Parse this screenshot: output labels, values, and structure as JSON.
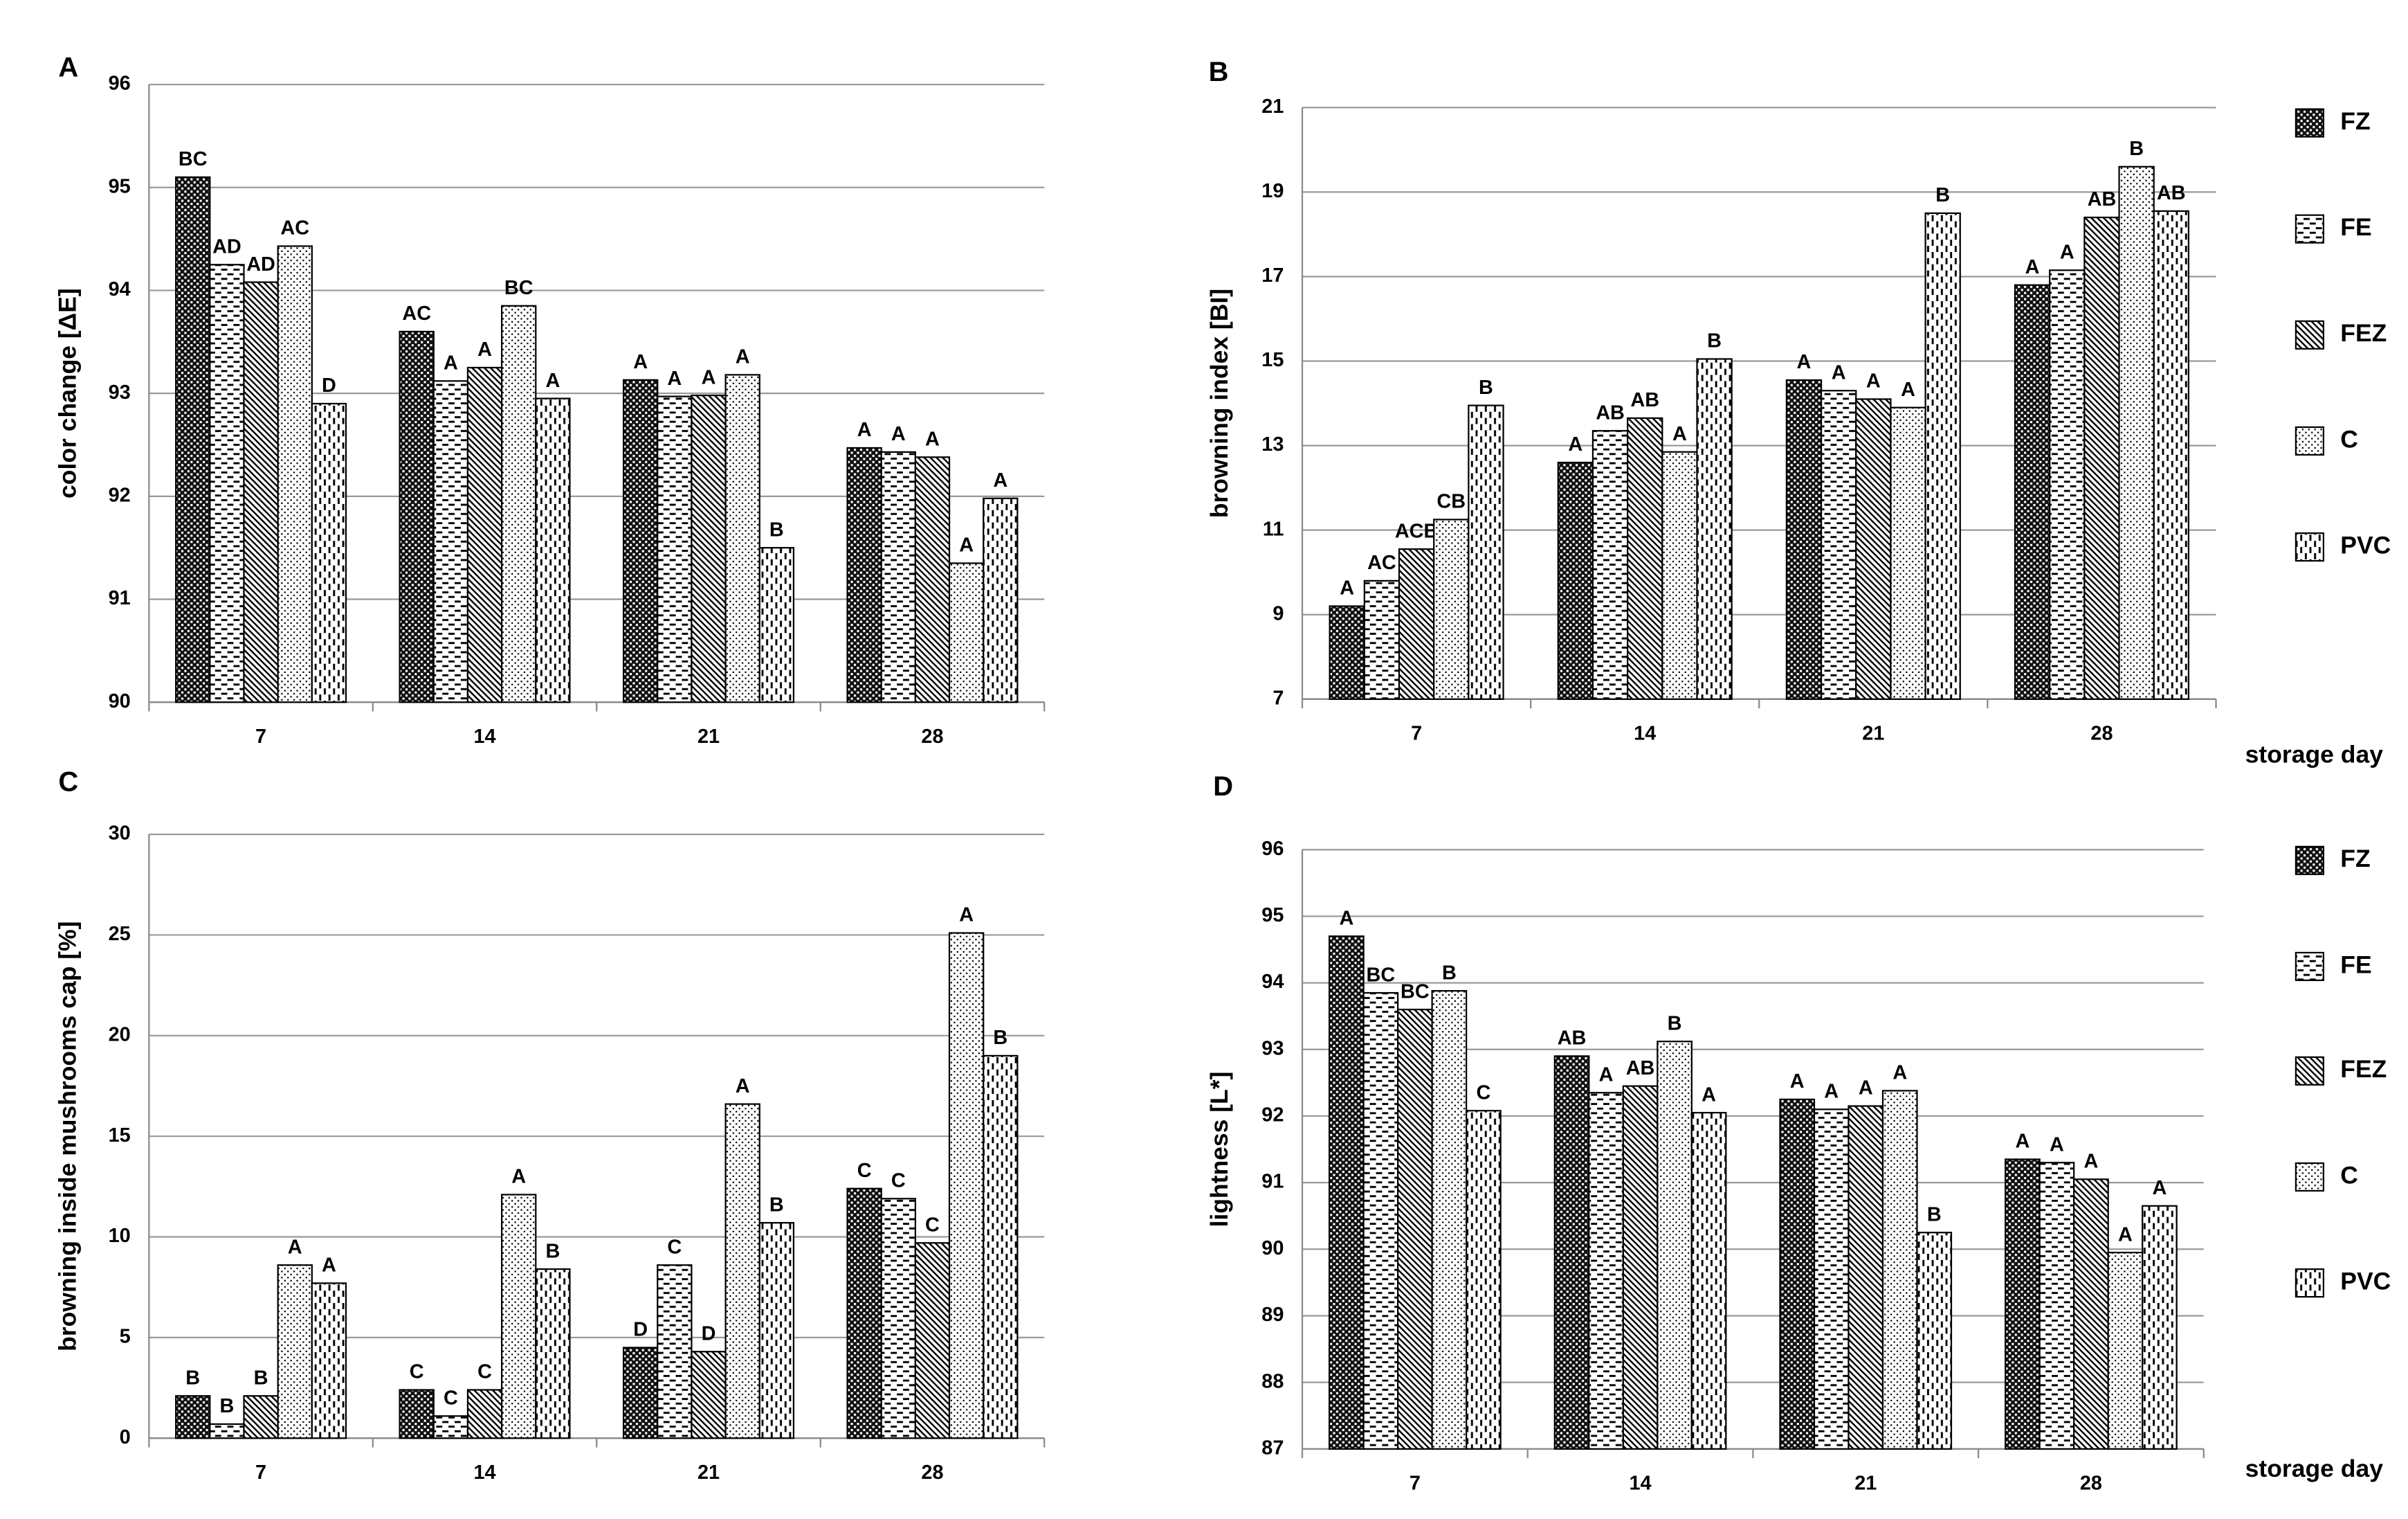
{
  "chart_data": [
    {
      "type": "bar",
      "panel_label": "A",
      "y_label": "color change [ΔE]",
      "categories": [
        "7",
        "14",
        "21",
        "28"
      ],
      "ylim": [
        90,
        96
      ],
      "yticks": [
        90,
        91,
        92,
        93,
        94,
        95,
        96
      ],
      "grid": true,
      "legend": false,
      "series": [
        {
          "name": "FZ",
          "pattern": "checker",
          "values": [
            95.1,
            93.6,
            93.13,
            92.47
          ],
          "significance_letters": [
            "BC",
            "AC",
            "A",
            "A"
          ]
        },
        {
          "name": "FE",
          "pattern": "hdash",
          "values": [
            94.25,
            93.12,
            92.97,
            92.43
          ],
          "significance_letters": [
            "AD",
            "A",
            "A",
            "A"
          ]
        },
        {
          "name": "FEZ",
          "pattern": "diag",
          "values": [
            94.08,
            93.25,
            92.98,
            92.38
          ],
          "significance_letters": [
            "AD",
            "A",
            "A",
            "A"
          ]
        },
        {
          "name": "C",
          "pattern": "dots",
          "values": [
            94.43,
            93.85,
            93.18,
            91.35
          ],
          "significance_letters": [
            "AC",
            "BC",
            "A",
            "A"
          ]
        },
        {
          "name": "PVC",
          "pattern": "vdash",
          "values": [
            92.9,
            92.95,
            91.5,
            91.98
          ],
          "significance_letters": [
            "D",
            "A",
            "B",
            "A"
          ]
        }
      ]
    },
    {
      "type": "bar",
      "panel_label": "B",
      "y_label": "browning index [BI]",
      "x_label": "storage day",
      "categories": [
        "7",
        "14",
        "21",
        "28"
      ],
      "ylim": [
        7,
        21
      ],
      "yticks": [
        7,
        9,
        11,
        13,
        15,
        17,
        19,
        21
      ],
      "grid": true,
      "legend": true,
      "series": [
        {
          "name": "FZ",
          "pattern": "checker",
          "values": [
            9.2,
            12.6,
            14.55,
            16.8
          ],
          "significance_letters": [
            "A",
            "A",
            "A",
            "A"
          ]
        },
        {
          "name": "FE",
          "pattern": "hdash",
          "values": [
            9.8,
            13.35,
            14.3,
            17.15
          ],
          "significance_letters": [
            "AC",
            "AB",
            "A",
            "A"
          ]
        },
        {
          "name": "FEZ",
          "pattern": "diag",
          "values": [
            10.55,
            13.65,
            14.1,
            18.4
          ],
          "significance_letters": [
            "ACB",
            "AB",
            "A",
            "AB"
          ]
        },
        {
          "name": "C",
          "pattern": "dots",
          "values": [
            11.25,
            12.85,
            13.9,
            19.6
          ],
          "significance_letters": [
            "CB",
            "A",
            "A",
            "B"
          ]
        },
        {
          "name": "PVC",
          "pattern": "vdash",
          "values": [
            13.95,
            15.05,
            18.5,
            18.55
          ],
          "significance_letters": [
            "B",
            "B",
            "B",
            "AB"
          ]
        }
      ]
    },
    {
      "type": "bar",
      "panel_label": "C",
      "y_label": "browning inside mushrooms cap [%]",
      "categories": [
        "7",
        "14",
        "21",
        "28"
      ],
      "ylim": [
        0,
        30
      ],
      "yticks": [
        0,
        5,
        10,
        15,
        20,
        25,
        30
      ],
      "grid": true,
      "legend": false,
      "series": [
        {
          "name": "FZ",
          "pattern": "checker",
          "values": [
            2.1,
            2.4,
            4.5,
            12.4
          ],
          "significance_letters": [
            "B",
            "C",
            "D",
            "C"
          ]
        },
        {
          "name": "FE",
          "pattern": "hdash",
          "values": [
            0.7,
            1.1,
            8.6,
            11.9
          ],
          "significance_letters": [
            "B",
            "C",
            "C",
            "C"
          ]
        },
        {
          "name": "FEZ",
          "pattern": "diag",
          "values": [
            2.1,
            2.4,
            4.3,
            9.7
          ],
          "significance_letters": [
            "B",
            "C",
            "D",
            "C"
          ]
        },
        {
          "name": "C",
          "pattern": "dots",
          "values": [
            8.6,
            12.1,
            16.6,
            25.1
          ],
          "significance_letters": [
            "A",
            "A",
            "A",
            "A"
          ]
        },
        {
          "name": "PVC",
          "pattern": "vdash",
          "values": [
            7.7,
            8.4,
            10.7,
            19.0
          ],
          "significance_letters": [
            "A",
            "B",
            "B",
            "B"
          ]
        }
      ]
    },
    {
      "type": "bar",
      "panel_label": "D",
      "y_label": "lightness [L*]",
      "x_label": "storage day",
      "categories": [
        "7",
        "14",
        "21",
        "28"
      ],
      "ylim": [
        87,
        96
      ],
      "yticks": [
        87,
        88,
        89,
        90,
        91,
        92,
        93,
        94,
        95,
        96
      ],
      "grid": true,
      "legend": true,
      "series": [
        {
          "name": "FZ",
          "pattern": "checker",
          "values": [
            94.7,
            92.9,
            92.25,
            91.35
          ],
          "significance_letters": [
            "A",
            "AB",
            "A",
            "A"
          ]
        },
        {
          "name": "FE",
          "pattern": "hdash",
          "values": [
            93.85,
            92.35,
            92.1,
            91.3
          ],
          "significance_letters": [
            "BC",
            "A",
            "A",
            "A"
          ]
        },
        {
          "name": "FEZ",
          "pattern": "diag",
          "values": [
            93.6,
            92.45,
            92.15,
            91.05
          ],
          "significance_letters": [
            "BC",
            "AB",
            "A",
            "A"
          ]
        },
        {
          "name": "C",
          "pattern": "dots",
          "values": [
            93.88,
            93.12,
            92.38,
            89.95
          ],
          "significance_letters": [
            "B",
            "B",
            "A",
            "A"
          ]
        },
        {
          "name": "PVC",
          "pattern": "vdash",
          "values": [
            92.08,
            92.05,
            90.25,
            90.65
          ],
          "significance_letters": [
            "C",
            "A",
            "B",
            "A"
          ]
        }
      ]
    }
  ]
}
